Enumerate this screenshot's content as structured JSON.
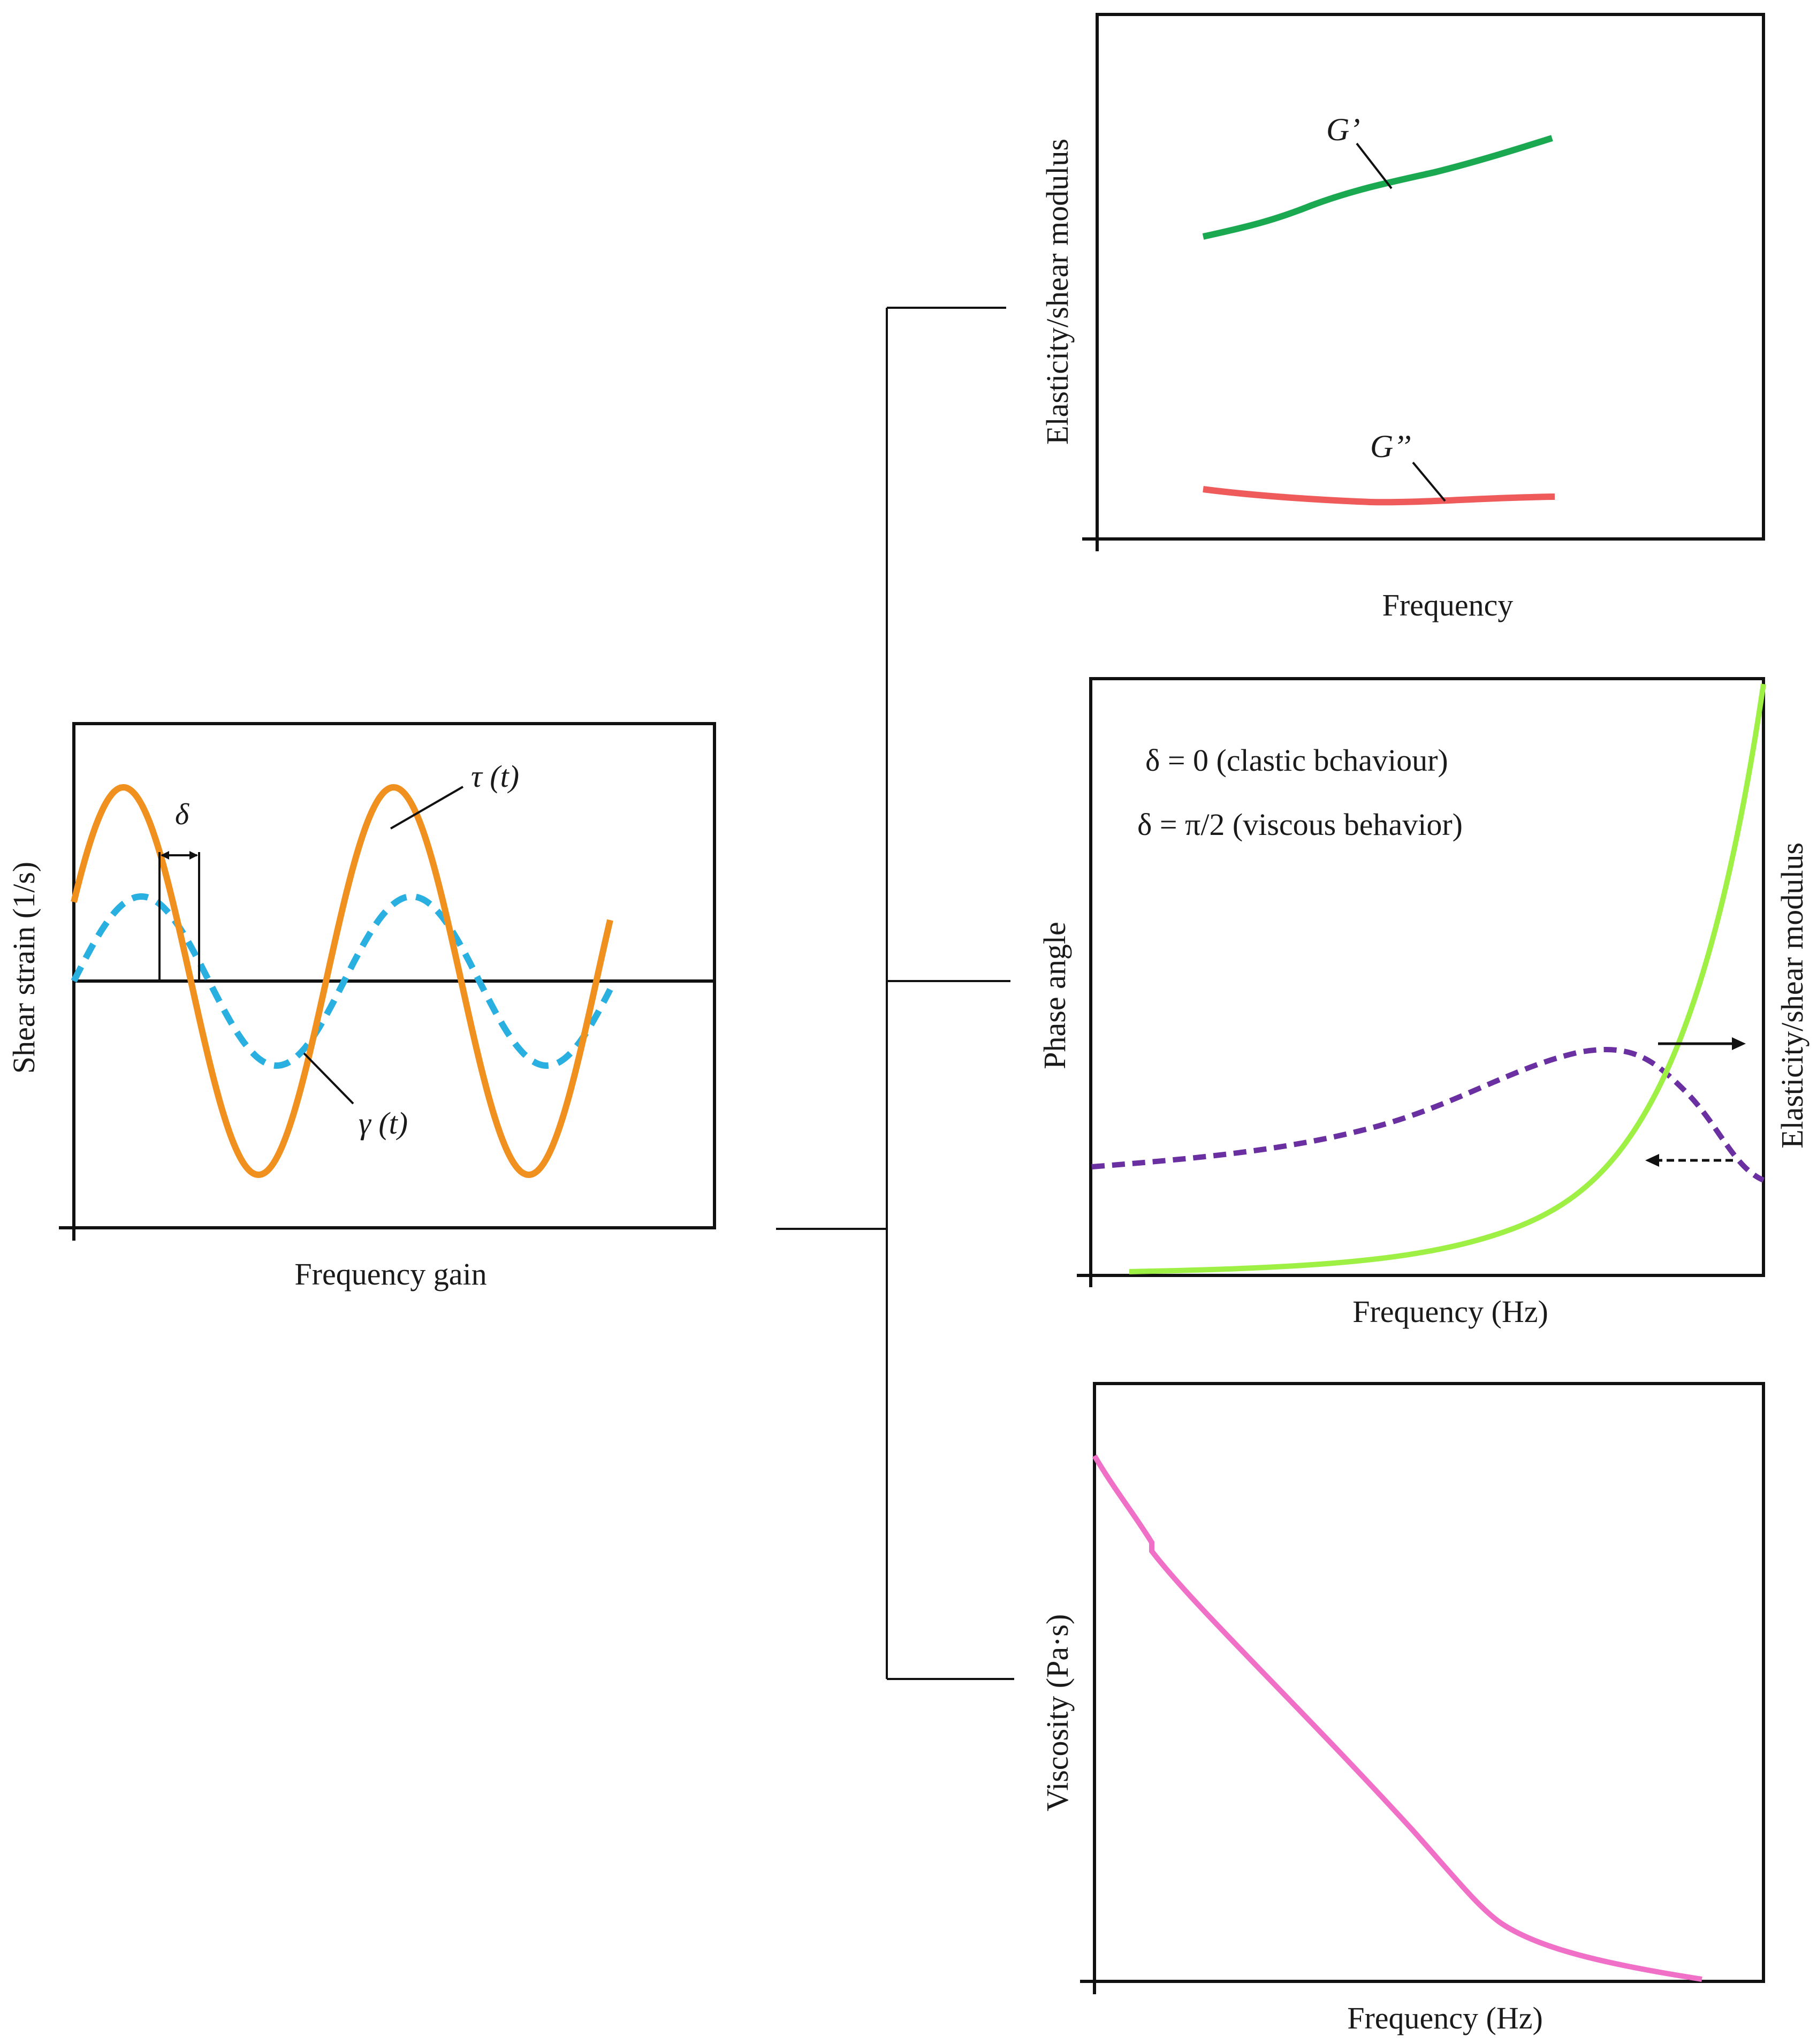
{
  "panels": {
    "wave": {
      "ylabel": "Shear strain (1/s)",
      "xlabel": "Frequency gain",
      "tau_label": "τ (t)",
      "gamma_label": "γ (t)",
      "delta_label": "δ",
      "colors": {
        "tau": "#f0901e",
        "gamma": "#2ab0e0"
      }
    },
    "modulus": {
      "ylabel": "Elasticity/shear modulus",
      "xlabel": "Frequency",
      "g_prime_label": "G’",
      "g_double_prime_label": "G’’",
      "colors": {
        "g_prime": "#1aa851",
        "g_double_prime": "#ef5b5b"
      }
    },
    "phase": {
      "ylabel_left": "Phase angle",
      "ylabel_right": "Elasticity/shear modulus",
      "xlabel": "Frequency (Hz)",
      "note_elastic": "δ = 0 (clastic bchaviour)",
      "note_viscous": "δ = π/2 (viscous behavior)",
      "colors": {
        "modulus_curve": "#9ef044",
        "phase_curve": "#6a2fa0"
      }
    },
    "viscosity": {
      "ylabel": "Viscosity (Pa·s)",
      "xlabel": "Frequency (Hz)",
      "colors": {
        "curve": "#f070c8"
      }
    }
  }
}
